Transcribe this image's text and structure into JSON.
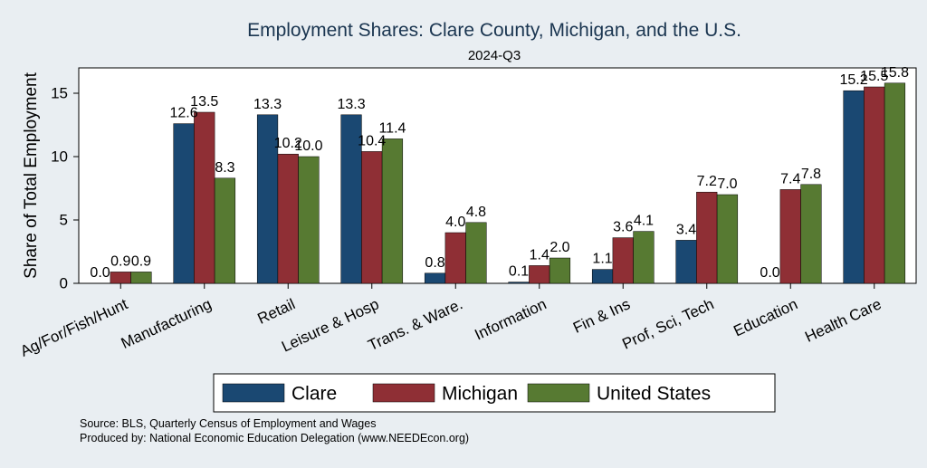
{
  "chart_data": {
    "type": "bar",
    "title": "Employment Shares: Clare County, Michigan, and the U.S.",
    "subtitle": "2024-Q3",
    "xlabel": "",
    "ylabel": "Share of Total Employment",
    "ylim": [
      0,
      17
    ],
    "yticks": [
      0,
      5,
      10,
      15
    ],
    "grid": false,
    "legend_position": "bottom",
    "categories": [
      "Ag/For/Fish/Hunt",
      "Manufacturing",
      "Retail",
      "Leisure & Hosp",
      "Trans. & Ware.",
      "Information",
      "Fin & Ins",
      "Prof, Sci, Tech",
      "Education",
      "Health Care"
    ],
    "series": [
      {
        "name": "Clare",
        "color": "#1a4872",
        "values": [
          0.0,
          12.6,
          13.3,
          13.3,
          0.8,
          0.1,
          1.1,
          3.4,
          0.0,
          15.2
        ]
      },
      {
        "name": "Michigan",
        "color": "#8f2f35",
        "values": [
          0.9,
          13.5,
          10.2,
          10.4,
          4.0,
          1.4,
          3.6,
          7.2,
          7.4,
          15.5
        ]
      },
      {
        "name": "United States",
        "color": "#577a32",
        "values": [
          0.9,
          8.3,
          10.0,
          11.4,
          4.8,
          2.0,
          4.1,
          7.0,
          7.8,
          15.8
        ]
      }
    ],
    "data_labels": [
      [
        "0.0",
        "12.6",
        "13.3",
        "13.3",
        "0.8",
        "0.1",
        "1.1",
        "3.4",
        "0.0",
        "15.2"
      ],
      [
        "0.9",
        "13.5",
        "10.2",
        "10.4",
        "4.0",
        "1.4",
        "3.6",
        "7.2",
        "7.4",
        "15.5"
      ],
      [
        "0.9",
        "8.3",
        "10.0",
        "11.4",
        "4.8",
        "2.0",
        "4.1",
        "7.0",
        "7.8",
        "15.8"
      ]
    ]
  },
  "notes": {
    "source": "Source: BLS, Quarterly Census of Employment and Wages",
    "produced_by": "Produced by: National Economic Education Delegation (www.NEEDEcon.org)"
  }
}
